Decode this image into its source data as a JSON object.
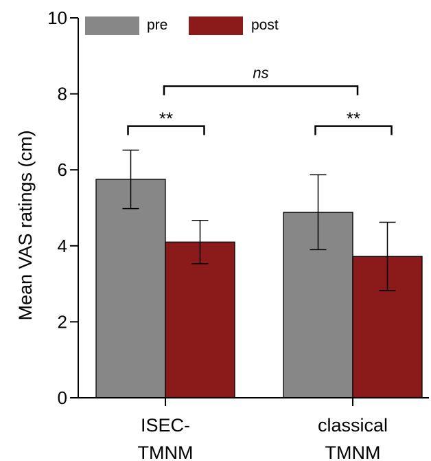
{
  "chart_data": {
    "type": "bar",
    "title": "",
    "xlabel": "",
    "ylabel": "Mean VAS ratings (cm)",
    "ylim": [
      0,
      10
    ],
    "yticks": [
      0,
      2,
      4,
      6,
      8,
      10
    ],
    "grid": false,
    "legend_position": "top-left",
    "categories": [
      [
        "ISEC-",
        "TMNM"
      ],
      [
        "classical",
        "TMNM"
      ]
    ],
    "series": [
      {
        "name": "pre",
        "color": "#878787",
        "values": [
          5.75,
          4.88
        ],
        "err_low": [
          4.98,
          3.9
        ],
        "err_high": [
          6.52,
          5.87
        ]
      },
      {
        "name": "post",
        "color": "#8b1a1a",
        "values": [
          4.1,
          3.72
        ],
        "err_low": [
          3.53,
          2.82
        ],
        "err_high": [
          4.67,
          4.62
        ]
      }
    ],
    "annotations": [
      {
        "text": "**",
        "type": "bracket",
        "category": 0,
        "y": 7.15
      },
      {
        "text": "**",
        "type": "bracket",
        "category": 1,
        "y": 7.15
      },
      {
        "text": "ns",
        "type": "bracket-between",
        "y": 8.2
      }
    ]
  }
}
